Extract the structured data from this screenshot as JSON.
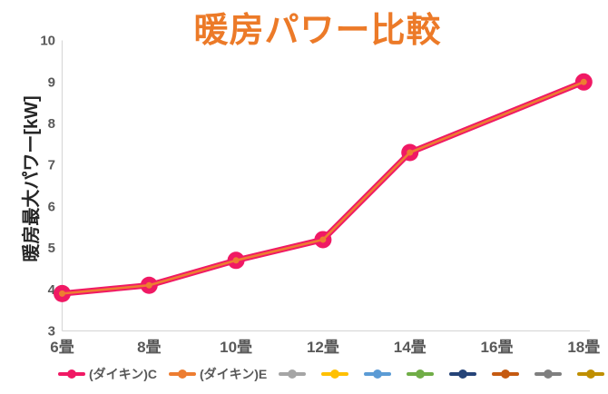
{
  "title": "暖房パワー比較",
  "y_axis_title": "暖房最大パワー[kW]",
  "colors": {
    "title": "#EC7A28",
    "axis_line": "#D9D9D9",
    "tick_label": "#595959",
    "axis_title_text": "#262626",
    "legend_text": "#595959",
    "background": "#FFFFFF"
  },
  "chart_data": {
    "type": "line",
    "title": "暖房パワー比較",
    "xlabel": "",
    "ylabel": "暖房最大パワー[kW]",
    "categories": [
      "6畳",
      "8畳",
      "10畳",
      "12畳",
      "14畳",
      "16畳",
      "18畳"
    ],
    "series": [
      {
        "name": "(ダイキン)C",
        "color": "#F01964",
        "values": [
          3.9,
          4.1,
          4.7,
          5.2,
          7.3,
          null,
          9.0
        ],
        "line_width": 6.5,
        "marker_radius": 9.5
      },
      {
        "name": "(ダイキン)E",
        "color": "#ED7D31",
        "values": [
          3.9,
          4.1,
          4.7,
          5.2,
          7.3,
          null,
          9.0
        ],
        "line_width": 2.6,
        "marker_radius": 3.5
      }
    ],
    "ylim": [
      3,
      10
    ],
    "y_ticks": [
      10,
      9,
      8,
      7,
      6,
      5,
      4,
      3
    ],
    "grid": false,
    "legend_position": "bottom"
  },
  "legend": {
    "entries": [
      {
        "label": "(ダイキン)C",
        "color": "#F01964"
      },
      {
        "label": "(ダイキン)E",
        "color": "#ED7D31"
      },
      {
        "label": "",
        "color": "#A5A5A5"
      },
      {
        "label": "",
        "color": "#FFC000"
      },
      {
        "label": "",
        "color": "#5B9BD5"
      },
      {
        "label": "",
        "color": "#70AD47"
      },
      {
        "label": "",
        "color": "#264478"
      },
      {
        "label": "",
        "color": "#C55A11"
      },
      {
        "label": "",
        "color": "#7F7F7F"
      },
      {
        "label": "",
        "color": "#BF8F00"
      }
    ]
  }
}
